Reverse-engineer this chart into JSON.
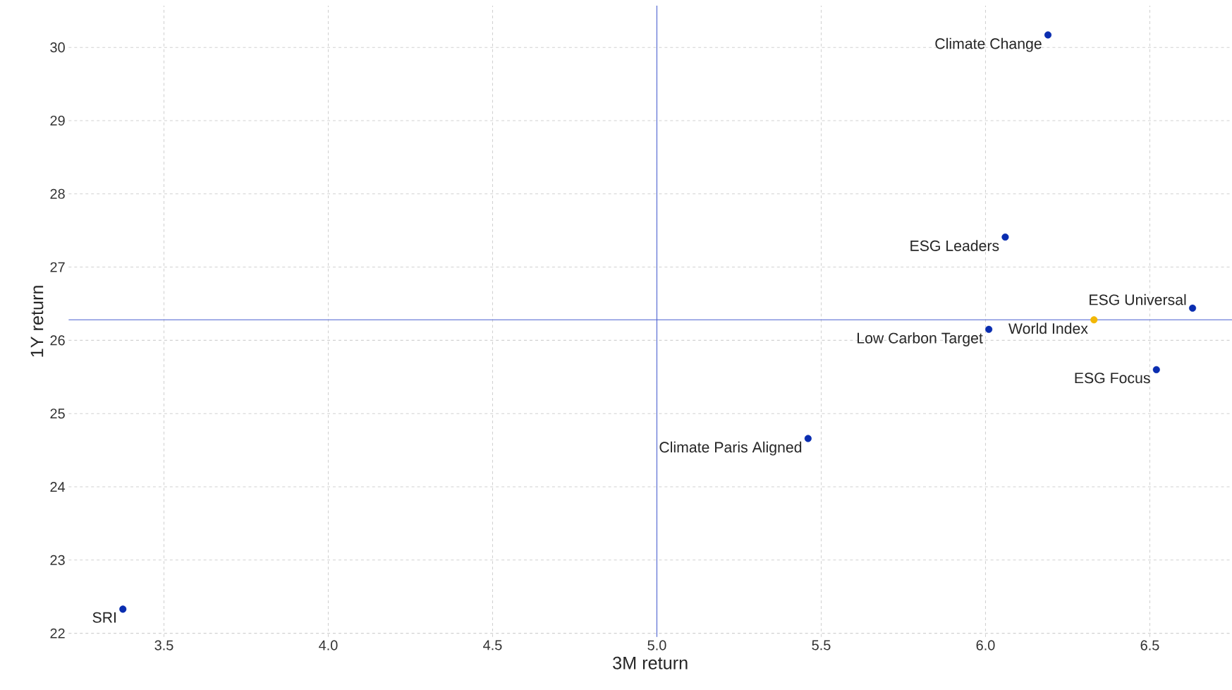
{
  "chart_data": {
    "type": "scatter",
    "xlabel": "3M return",
    "ylabel": "1Y return",
    "xlim": [
      3.21,
      6.75
    ],
    "ylim": [
      21.95,
      30.57
    ],
    "xticks": [
      {
        "value": 3.5,
        "label": "3.5"
      },
      {
        "value": 4.0,
        "label": "4.0"
      },
      {
        "value": 4.5,
        "label": "4.5"
      },
      {
        "value": 5.0,
        "label": "5.0"
      },
      {
        "value": 5.5,
        "label": "5.5"
      },
      {
        "value": 6.0,
        "label": "6.0"
      },
      {
        "value": 6.5,
        "label": "6.5"
      }
    ],
    "yticks": [
      22,
      23,
      24,
      25,
      26,
      27,
      28,
      29,
      30
    ],
    "grid": true,
    "marker": "circle",
    "series": [
      {
        "color": "#0a2db0",
        "x": [
          6.19,
          6.06,
          6.63,
          6.01,
          6.52,
          5.46,
          3.375
        ],
        "values": [
          30.17,
          27.41,
          26.44,
          26.15,
          25.6,
          24.66,
          22.33
        ]
      },
      {
        "color": "#f2b705",
        "x": [
          6.33
        ],
        "values": [
          26.28
        ]
      }
    ],
    "ref_lines": [
      {
        "axis": "x",
        "value": 5.0,
        "color": "#4a5fd0"
      },
      {
        "axis": "y",
        "value": 26.28,
        "color": "#4a5fd0"
      }
    ],
    "annotations": [
      {
        "text": "ESG Universal",
        "x": 6.63,
        "y": 26.44
      },
      {
        "text": "World Index",
        "x": 6.33,
        "y": 26.28
      },
      {
        "text": "Low Carbon Target",
        "x": 6.01,
        "y": 26.15
      },
      {
        "text": "Climate Change",
        "x": 6.19,
        "y": 30.17
      },
      {
        "text": "ESG Leaders",
        "x": 6.06,
        "y": 27.41
      },
      {
        "text": "ESG Focus",
        "x": 6.52,
        "y": 25.6
      },
      {
        "text": "Climate Paris Aligned",
        "x": 5.46,
        "y": 24.66
      },
      {
        "text": "SRI",
        "x": 3.375,
        "y": 22.33
      }
    ]
  }
}
